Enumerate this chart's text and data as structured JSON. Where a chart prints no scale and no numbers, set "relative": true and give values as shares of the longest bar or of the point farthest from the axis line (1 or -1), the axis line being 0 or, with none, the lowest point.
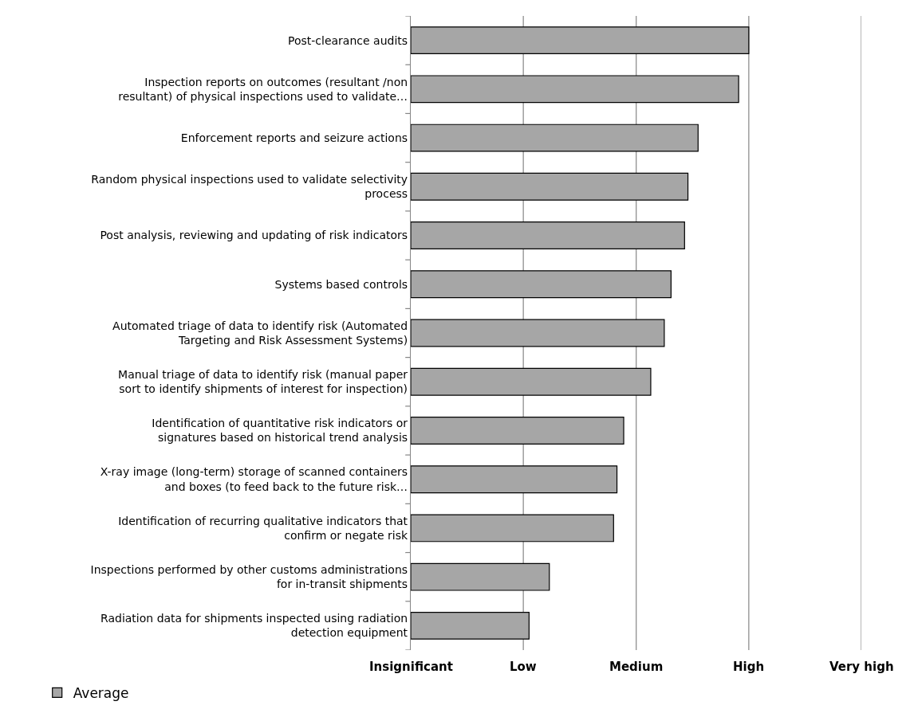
{
  "chart_data": {
    "type": "bar",
    "orientation": "horizontal",
    "relative": true,
    "categories": [
      "Post-clearance audits",
      "Inspection reports on outcomes (resultant /non resultant) of physical inspections used to validate…",
      "Enforcement reports and seizure actions",
      "Random physical inspections used to validate selectivity process",
      "Post analysis, reviewing and updating of risk indicators",
      "Systems based controls",
      "Automated triage of data to identify risk (Automated Targeting and Risk Assessment Systems)",
      "Manual triage of data to identify risk (manual paper sort to identify shipments of interest for inspection)",
      "Identification of quantitative risk indicators or signatures based on historical trend analysis",
      "X-ray image (long-term) storage of scanned containers and boxes (to feed back to the future risk…",
      "Identification of recurring qualitative indicators that confirm or negate risk",
      "Inspections performed by other customs administrations for in-transit shipments",
      "Radiation data for shipments inspected using radiation detection equipment"
    ],
    "series": [
      {
        "name": "Average",
        "color": "#a6a6a6",
        "values": [
          1.0,
          0.97,
          0.85,
          0.82,
          0.81,
          0.77,
          0.75,
          0.71,
          0.63,
          0.61,
          0.6,
          0.41,
          0.35
        ]
      }
    ],
    "ref_lines": [
      {
        "axis": "x",
        "value": 0,
        "label": "Insignificant"
      },
      {
        "axis": "x",
        "value": 0.333,
        "label": "Low"
      },
      {
        "axis": "x",
        "value": 0.667,
        "label": "Medium"
      },
      {
        "axis": "x",
        "value": 1.0,
        "label": "High"
      },
      {
        "axis": "x",
        "value": 1.333,
        "label": "Very high"
      }
    ],
    "legend": "bottom left"
  }
}
